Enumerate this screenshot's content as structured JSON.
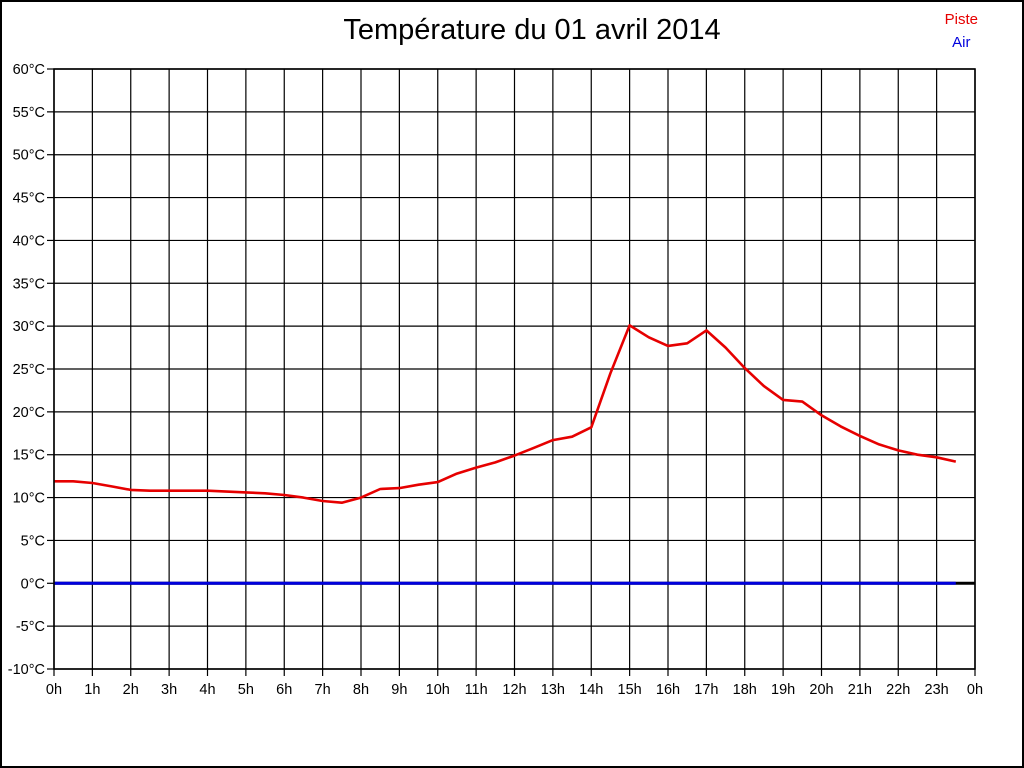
{
  "window": {
    "background": "#ffffff",
    "border_color": "#000000"
  },
  "title": "Température du 01 avril 2014",
  "legend": {
    "items": [
      {
        "label": "Piste",
        "color": "#e60000"
      },
      {
        "label": "Air",
        "color": "#0000dd"
      }
    ]
  },
  "chart_data": {
    "type": "line",
    "title": "Température du 01 avril 2014",
    "xlabel": "",
    "ylabel": "",
    "xlim": [
      0,
      24
    ],
    "ylim": [
      -10,
      60
    ],
    "grid": true,
    "grid_color": "#000000",
    "frame_color": "#000000",
    "legend_position": "top-right",
    "x_ticks": [
      0,
      1,
      2,
      3,
      4,
      5,
      6,
      7,
      8,
      9,
      10,
      11,
      12,
      13,
      14,
      15,
      16,
      17,
      18,
      19,
      20,
      21,
      22,
      23,
      24
    ],
    "x_tick_labels": [
      "0h",
      "1h",
      "2h",
      "3h",
      "4h",
      "5h",
      "6h",
      "7h",
      "8h",
      "9h",
      "10h",
      "11h",
      "12h",
      "13h",
      "14h",
      "15h",
      "16h",
      "17h",
      "18h",
      "19h",
      "20h",
      "21h",
      "22h",
      "23h",
      "0h"
    ],
    "y_ticks": [
      60,
      55,
      50,
      45,
      40,
      35,
      30,
      25,
      20,
      15,
      10,
      5,
      0,
      -5,
      -10
    ],
    "y_tick_labels": [
      "60°C",
      "55°C",
      "50°C",
      "45°C",
      "40°C",
      "35°C",
      "30°C",
      "25°C",
      "20°C",
      "15°C",
      "10°C",
      "5°C",
      "0°C",
      "-5°C",
      "-10°C"
    ],
    "zero_axis": {
      "value": 0,
      "color": "#000000",
      "width": 3
    },
    "x": [
      0,
      0.5,
      1,
      1.5,
      2,
      2.5,
      3,
      3.5,
      4,
      4.5,
      5,
      5.5,
      6,
      6.5,
      7,
      7.5,
      8,
      8.5,
      9,
      9.5,
      10,
      10.5,
      11,
      11.5,
      12,
      12.5,
      13,
      13.5,
      14,
      14.5,
      15,
      15.5,
      16,
      16.5,
      17,
      17.5,
      18,
      18.5,
      19,
      19.5,
      20,
      20.5,
      21,
      21.5,
      22,
      22.5,
      23,
      23.5
    ],
    "series": [
      {
        "name": "Piste",
        "color": "#e60000",
        "width": 2.6,
        "values": [
          11.9,
          11.9,
          11.7,
          11.3,
          10.9,
          10.8,
          10.8,
          10.8,
          10.8,
          10.7,
          10.6,
          10.5,
          10.3,
          10.0,
          9.6,
          9.4,
          10.0,
          11.0,
          11.1,
          11.5,
          11.8,
          12.8,
          13.5,
          14.1,
          14.9,
          15.8,
          16.7,
          17.1,
          18.2,
          24.5,
          30.1,
          28.7,
          27.7,
          28.0,
          29.5,
          27.5,
          25.1,
          23.0,
          21.4,
          21.2,
          19.6,
          18.3,
          17.2,
          16.2,
          15.5,
          15.0,
          14.7,
          14.2
        ]
      },
      {
        "name": "Air",
        "color": "#0000dd",
        "width": 3,
        "values": [
          0,
          0,
          0,
          0,
          0,
          0,
          0,
          0,
          0,
          0,
          0,
          0,
          0,
          0,
          0,
          0,
          0,
          0,
          0,
          0,
          0,
          0,
          0,
          0,
          0,
          0,
          0,
          0,
          0,
          0,
          0,
          0,
          0,
          0,
          0,
          0,
          0,
          0,
          0,
          0,
          0,
          0,
          0,
          0,
          0,
          0,
          0,
          0
        ]
      }
    ]
  }
}
